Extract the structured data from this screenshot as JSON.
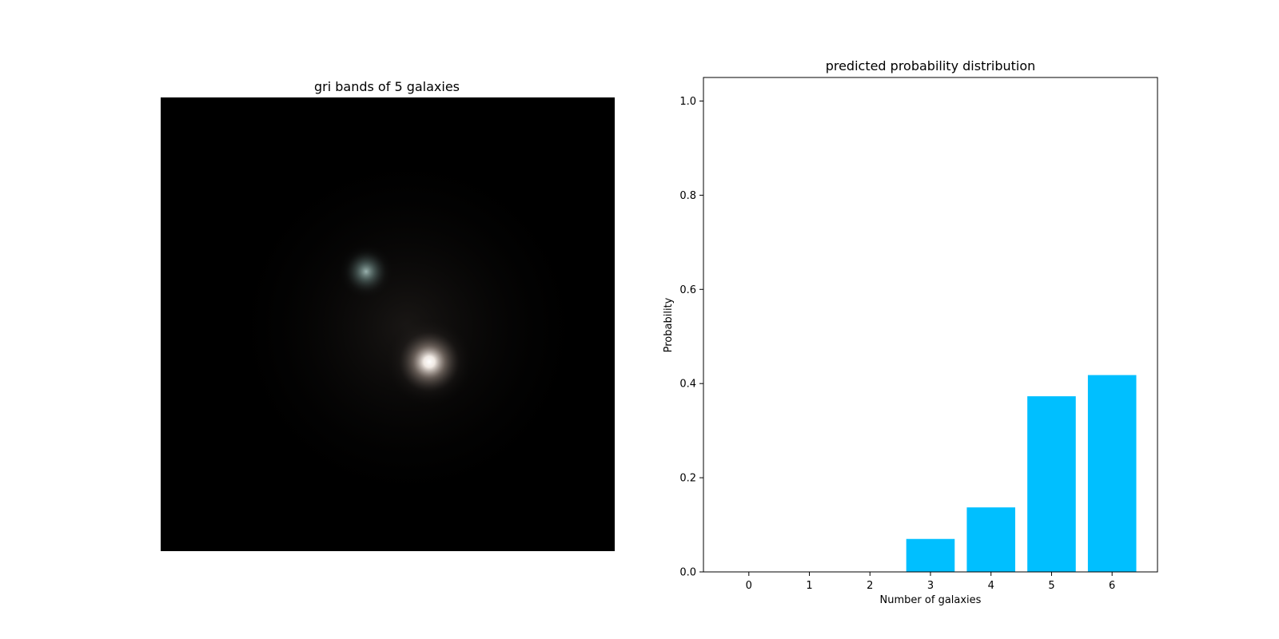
{
  "image_panel": {
    "title": "gri bands of 5 galaxies",
    "background_color": "#000000",
    "sources": [
      {
        "name": "galaxy-bright",
        "core_color": "#ffffff",
        "halo_color": "#e8d8cc",
        "brightness": 1.0
      },
      {
        "name": "galaxy-faint",
        "core_color": "#a9c4c0",
        "halo_color": "#6f8a86",
        "brightness": 0.55
      }
    ]
  },
  "chart_data": {
    "type": "bar",
    "title": "predicted probability distribution",
    "xlabel": "Number of galaxies",
    "ylabel": "Probability",
    "categories": [
      "0",
      "1",
      "2",
      "3",
      "4",
      "5",
      "6"
    ],
    "values": [
      0.0,
      0.0,
      0.0,
      0.07,
      0.137,
      0.373,
      0.418
    ],
    "ylim": [
      0.0,
      1.05
    ],
    "xlim": [
      -0.75,
      6.75
    ],
    "yticks": [
      "0.0",
      "0.2",
      "0.4",
      "0.6",
      "0.8",
      "1.0"
    ],
    "ytick_values": [
      0.0,
      0.2,
      0.4,
      0.6,
      0.8,
      1.0
    ],
    "bar_color": "#00bfff",
    "grid": false
  }
}
